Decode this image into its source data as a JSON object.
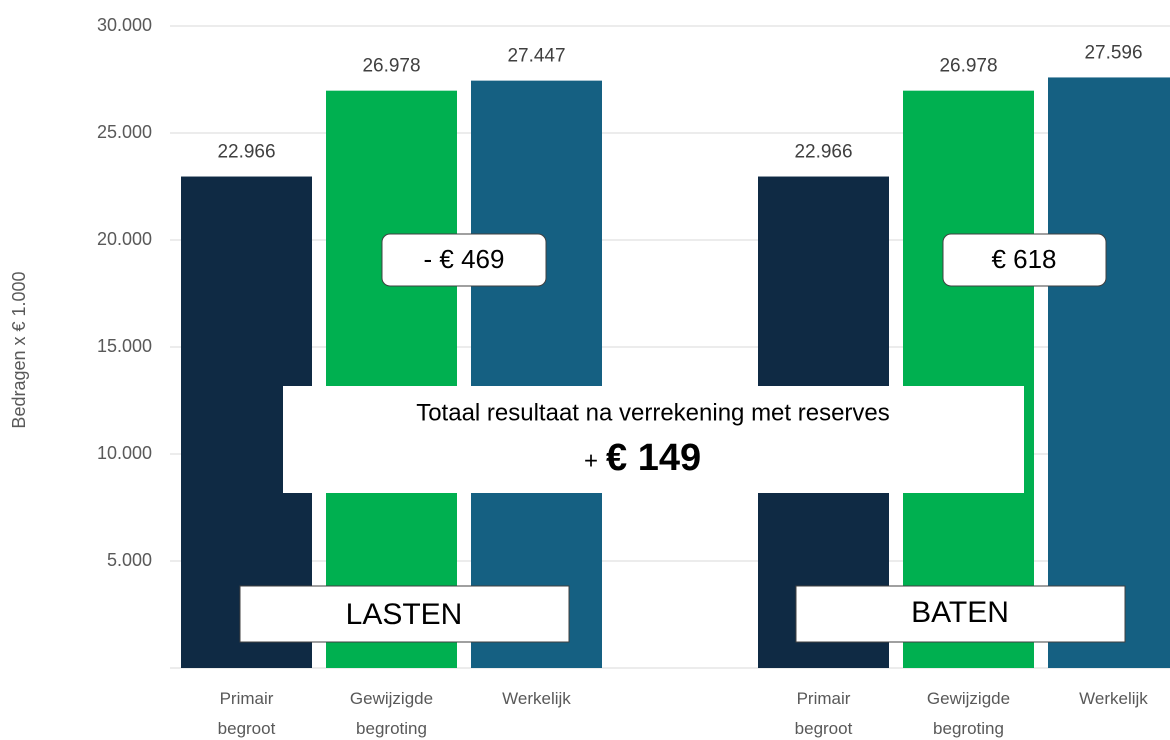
{
  "chart_data": {
    "type": "bar",
    "y_label": "Bedragen x € 1.000",
    "categories": [
      "LASTEN",
      "BATEN"
    ],
    "series": [
      {
        "name": "Primair begroot",
        "color": "#0f2a44",
        "values": [
          22966,
          22966
        ],
        "value_labels": [
          "22.966",
          "22.966"
        ]
      },
      {
        "name": "Gewijzigde begroting",
        "color": "#00b050",
        "values": [
          26978,
          26978
        ],
        "value_labels": [
          "26.978",
          "26.978"
        ]
      },
      {
        "name": "Werkelijk",
        "color": "#156082",
        "values": [
          27447,
          27596
        ],
        "value_labels": [
          "27.447",
          "27.596"
        ]
      }
    ],
    "ylim": [
      0,
      30000
    ],
    "yticks": [
      {
        "value": 5000,
        "label": "5.000"
      },
      {
        "value": 10000,
        "label": "10.000"
      },
      {
        "value": 15000,
        "label": "15.000"
      },
      {
        "value": 20000,
        "label": "20.000"
      },
      {
        "value": 25000,
        "label": "25.000"
      },
      {
        "value": 30000,
        "label": "30.000"
      }
    ],
    "grid": true,
    "annotations": {
      "differences": [
        "- € 469",
        "€ 618"
      ],
      "result_title": "Totaal resultaat na verrekening met reserves",
      "result_sign": "+",
      "result_value": "€ 149"
    }
  }
}
